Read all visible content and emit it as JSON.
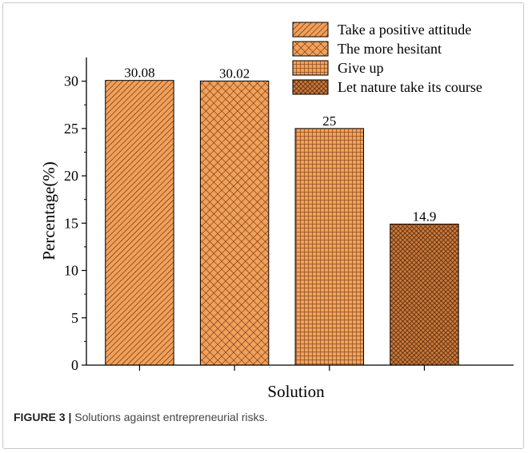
{
  "caption": {
    "label": "FIGURE 3 |",
    "text": " Solutions against entrepreneurial risks."
  },
  "colors": {
    "bar_fill": "#f2a05a",
    "pattern_ink": "#5a2a08",
    "axis": "#000000"
  },
  "chart_data": {
    "type": "bar",
    "categories": [
      "Take a positive attitude",
      "The more hesitant",
      "Give up",
      "Let nature take its course"
    ],
    "values": [
      30.08,
      30.02,
      25,
      14.9
    ],
    "data_labels": [
      "30.08",
      "30.02",
      "25",
      "14.9"
    ],
    "patterns": [
      "diagonal-hatch",
      "diagonal-crosshatch",
      "square-grid",
      "dense-crosshatch"
    ],
    "xlabel": "Solution",
    "ylabel": "Percentage(%)",
    "ylim": [
      0,
      32.5
    ],
    "yticks": [
      0,
      5,
      10,
      15,
      20,
      25,
      30
    ],
    "grid": false,
    "legend": {
      "position": "top-right",
      "entries": [
        "Take a positive attitude",
        "The more hesitant",
        "Give up",
        "Let nature take its course"
      ]
    }
  }
}
